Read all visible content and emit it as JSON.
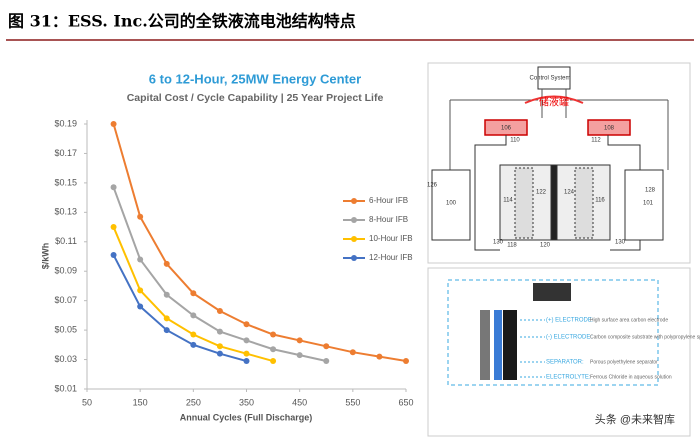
{
  "header": {
    "title": "图 31：ESS. Inc.公司的全铁液流电池结构特点"
  },
  "chart_data": {
    "type": "line",
    "title": "6 to 12-Hour, 25MW Energy Center",
    "subtitle": "Capital Cost / Cycle Capability | 25 Year Project Life",
    "x_label": "Annual Cycles (Full Discharge)",
    "y_label": "$/kWh",
    "x": [
      100,
      150,
      200,
      250,
      300,
      350,
      400,
      450,
      500,
      550,
      600,
      650
    ],
    "series": [
      {
        "name": "6-Hour IFB",
        "color": "#ed7d31",
        "values": [
          0.19,
          0.127,
          0.095,
          0.075,
          0.063,
          0.054,
          0.047,
          0.043,
          0.039,
          0.035,
          0.032,
          0.029
        ]
      },
      {
        "name": "8-Hour IFB",
        "color": "#a5a5a5",
        "values": [
          0.147,
          0.098,
          0.074,
          0.06,
          0.049,
          0.043,
          0.037,
          0.033,
          0.029,
          null,
          null,
          null
        ]
      },
      {
        "name": "10-Hour IFB",
        "color": "#ffc000",
        "values": [
          0.12,
          0.077,
          0.058,
          0.047,
          0.039,
          0.034,
          0.029,
          null,
          null,
          null,
          null,
          null
        ]
      },
      {
        "name": "12-Hour IFB",
        "color": "#4472c4",
        "values": [
          0.101,
          0.066,
          0.05,
          0.04,
          0.034,
          0.029,
          null,
          null,
          null,
          null,
          null,
          null
        ]
      }
    ],
    "xlim": [
      50,
      650
    ],
    "xticks": [
      50,
      150,
      250,
      350,
      450,
      550,
      650
    ],
    "ylim": [
      0.01,
      0.19
    ],
    "yticks": [
      {
        "value": 0.01,
        "label": "$0.01"
      },
      {
        "value": 0.03,
        "label": "$0.03"
      },
      {
        "value": 0.05,
        "label": "$0.05"
      },
      {
        "value": 0.07,
        "label": "$0.07"
      },
      {
        "value": 0.09,
        "label": "$0.09"
      },
      {
        "value": 0.11,
        "label": "$0.11"
      },
      {
        "value": 0.13,
        "label": "$0.13"
      },
      {
        "value": 0.15,
        "label": "$0.15"
      },
      {
        "value": 0.17,
        "label": "$0.17"
      },
      {
        "value": 0.19,
        "label": "$0.19"
      }
    ],
    "grid": false,
    "legend": "right"
  },
  "system_diagram": {
    "control": "Control System",
    "tank_label": "储液罐",
    "parts": [
      "106",
      "108",
      "110",
      "112",
      "126",
      "100",
      "114",
      "122",
      "124",
      "116",
      "101",
      "128",
      "130",
      "118",
      "120",
      "130"
    ]
  },
  "cell_diagram": {
    "labels": [
      {
        "term": "(+) ELECTRODE:",
        "text": "High surface area carbon electrode"
      },
      {
        "term": "(-) ELECTRODE:",
        "text": "Carbon composite substrate with polypropylene spacer"
      },
      {
        "term": "SEPARATOR:",
        "text": "Porous polyethylene separator"
      },
      {
        "term": "ELECTROLYTE:",
        "text": "Ferrous Chloride in aqueous solution"
      }
    ]
  },
  "watermark": "头条 @未来智库"
}
